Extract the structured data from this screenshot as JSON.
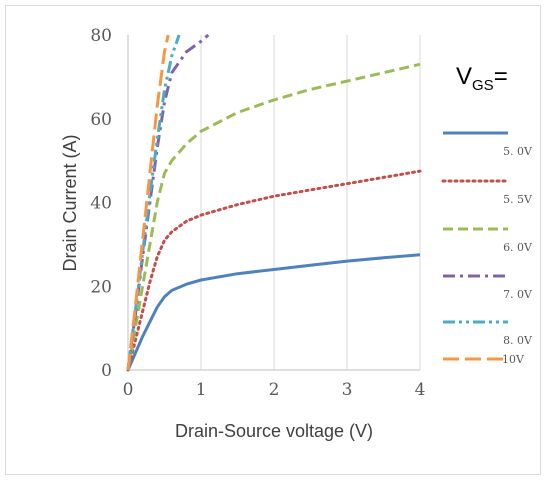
{
  "chart_data": {
    "type": "line",
    "xlabel": "Drain-Source voltage (V)",
    "ylabel": "Drain Current (A)",
    "xlim": [
      0,
      4
    ],
    "ylim": [
      0,
      80
    ],
    "xticks": [
      "0",
      "1",
      "2",
      "3",
      "4"
    ],
    "yticks": [
      "0",
      "20",
      "40",
      "60",
      "80"
    ],
    "grid": "vertical",
    "legend_title": {
      "main": "V",
      "sub": "GS",
      "suffix": "="
    },
    "legend_position": "right",
    "series": [
      {
        "name": "5. 0V",
        "color": "#4f81bd",
        "dash": "solid",
        "x": [
          0,
          0.1,
          0.2,
          0.3,
          0.4,
          0.5,
          0.6,
          0.8,
          1.0,
          1.5,
          2.0,
          2.5,
          3.0,
          3.5,
          4.0
        ],
        "y": [
          0,
          4,
          8,
          11.5,
          15,
          17.5,
          19,
          20.5,
          21.5,
          23,
          24,
          25,
          26,
          26.8,
          27.5
        ]
      },
      {
        "name": "5. 5V",
        "color": "#c0504d",
        "dash": "dot",
        "x": [
          0,
          0.1,
          0.2,
          0.3,
          0.4,
          0.5,
          0.6,
          0.8,
          1.0,
          1.5,
          2.0,
          2.5,
          3.0,
          3.5,
          4.0
        ],
        "y": [
          0,
          7,
          14,
          21,
          27,
          31,
          33,
          35.5,
          37,
          39.5,
          41.5,
          43,
          44.5,
          46,
          47.5
        ]
      },
      {
        "name": "6. 0V",
        "color": "#9bbb59",
        "dash": "dash",
        "x": [
          0,
          0.1,
          0.2,
          0.3,
          0.4,
          0.5,
          0.6,
          0.8,
          1.0,
          1.5,
          2.0,
          2.5,
          3.0,
          3.5,
          4.0
        ],
        "y": [
          0,
          10,
          20,
          30,
          40,
          47,
          50,
          54,
          57,
          61.5,
          64.5,
          67,
          69,
          71,
          73
        ]
      },
      {
        "name": "7. 0V",
        "color": "#8064a2",
        "dash": "dashdot",
        "x": [
          0,
          0.1,
          0.2,
          0.3,
          0.4,
          0.5,
          0.6,
          0.8,
          1.0,
          1.1
        ],
        "y": [
          0,
          13,
          27,
          40,
          53,
          64,
          71,
          76,
          78.5,
          80
        ]
      },
      {
        "name": "8. 0V",
        "color": "#4bacc6",
        "dash": "dashdotdot",
        "x": [
          0,
          0.1,
          0.2,
          0.3,
          0.4,
          0.5,
          0.6,
          0.7
        ],
        "y": [
          0,
          14,
          28,
          42,
          55,
          67,
          75,
          80
        ]
      },
      {
        "name": "10V",
        "color": "#f79646",
        "dash": "longdash",
        "x": [
          0,
          0.1,
          0.2,
          0.3,
          0.4,
          0.5,
          0.55
        ],
        "y": [
          0,
          15,
          31,
          47,
          63,
          76,
          80
        ]
      }
    ]
  }
}
